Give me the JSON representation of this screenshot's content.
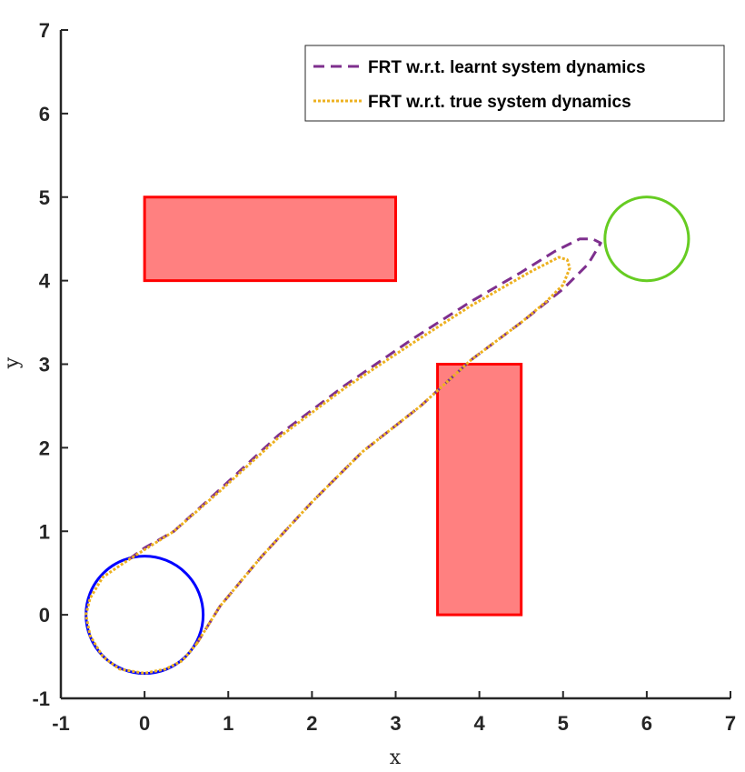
{
  "chart_data": {
    "type": "line",
    "xlabel": "x",
    "ylabel": "y",
    "xlim": [
      -1,
      7
    ],
    "ylim": [
      -1,
      7
    ],
    "xticks": [
      -1,
      0,
      1,
      2,
      3,
      4,
      5,
      6,
      7
    ],
    "yticks": [
      -1,
      0,
      1,
      2,
      3,
      4,
      5,
      6,
      7
    ],
    "grid": false,
    "legend_position": "top-right",
    "obstacles": [
      {
        "x0": 0,
        "y0": 4,
        "x1": 3,
        "y1": 5,
        "fill": "#ff8080",
        "edge": "#ff0000"
      },
      {
        "x0": 3.5,
        "y0": 0,
        "x1": 4.5,
        "y1": 3,
        "fill": "#ff8080",
        "edge": "#ff0000"
      }
    ],
    "start_set": {
      "cx": 0,
      "cy": 0,
      "r": 0.7,
      "color": "#0000ff"
    },
    "target_set": {
      "cx": 6,
      "cy": 4.5,
      "r": 0.5,
      "color": "#66cc22"
    },
    "series": [
      {
        "name": "FRT w.r.t. learnt system dynamics",
        "color": "#7e2f8e",
        "style": "dashed",
        "points": [
          [
            0.62,
            -0.35
          ],
          [
            0.9,
            0.1
          ],
          [
            1.4,
            0.7
          ],
          [
            2,
            1.35
          ],
          [
            2.6,
            1.95
          ],
          [
            3.3,
            2.5
          ],
          [
            3.9,
            3.05
          ],
          [
            4.5,
            3.5
          ],
          [
            5,
            3.9
          ],
          [
            5.3,
            4.2
          ],
          [
            5.45,
            4.45
          ],
          [
            5.35,
            4.5
          ],
          [
            5.2,
            4.5
          ],
          [
            4.9,
            4.35
          ],
          [
            4.5,
            4.1
          ],
          [
            3.9,
            3.75
          ],
          [
            3.2,
            3.3
          ],
          [
            2.4,
            2.75
          ],
          [
            1.6,
            2.15
          ],
          [
            0.9,
            1.5
          ],
          [
            0.35,
            1
          ],
          [
            0,
            0.8
          ],
          [
            -0.25,
            0.62
          ]
        ]
      },
      {
        "name": "FRT w.r.t. true system dynamics",
        "color": "#edb120",
        "style": "dotted",
        "points": [
          [
            0.62,
            -0.35
          ],
          [
            0.9,
            0.1
          ],
          [
            1.4,
            0.7
          ],
          [
            2,
            1.35
          ],
          [
            2.6,
            1.95
          ],
          [
            3.3,
            2.5
          ],
          [
            3.9,
            3.05
          ],
          [
            4.5,
            3.5
          ],
          [
            4.8,
            3.75
          ],
          [
            5,
            3.95
          ],
          [
            5.08,
            4.15
          ],
          [
            5.05,
            4.25
          ],
          [
            4.95,
            4.28
          ],
          [
            4.6,
            4.1
          ],
          [
            3.9,
            3.7
          ],
          [
            3.2,
            3.25
          ],
          [
            2.4,
            2.72
          ],
          [
            1.6,
            2.12
          ],
          [
            0.9,
            1.48
          ],
          [
            0.35,
            1
          ],
          [
            0,
            0.78
          ],
          [
            -0.25,
            0.62
          ],
          [
            -0.5,
            0.45
          ],
          [
            -0.65,
            0.2
          ],
          [
            -0.7,
            0
          ],
          [
            -0.65,
            -0.25
          ],
          [
            -0.5,
            -0.5
          ],
          [
            -0.3,
            -0.65
          ],
          [
            0,
            -0.7
          ],
          [
            0.25,
            -0.65
          ],
          [
            0.45,
            -0.55
          ],
          [
            0.62,
            -0.35
          ]
        ]
      }
    ]
  }
}
